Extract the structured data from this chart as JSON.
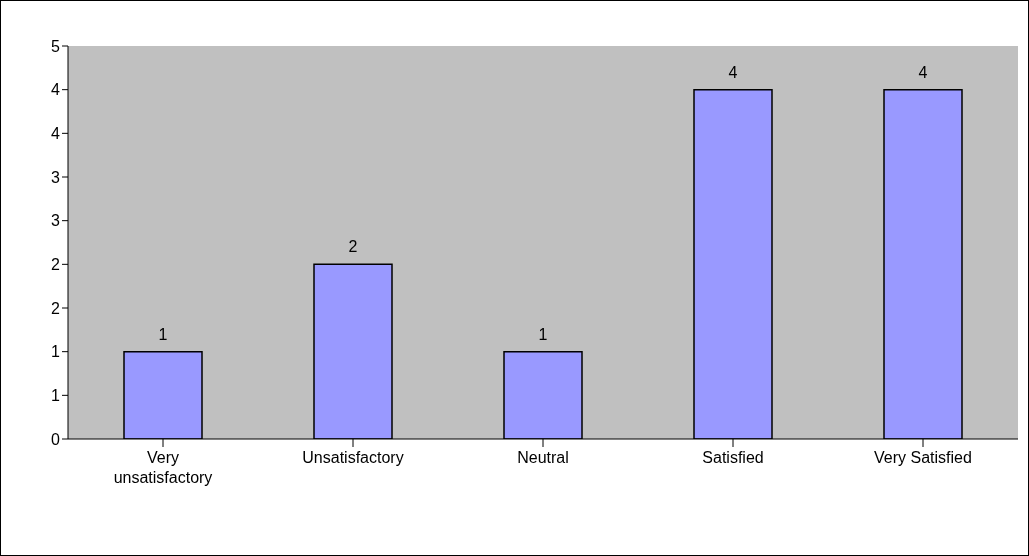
{
  "chart_data": {
    "type": "bar",
    "categories": [
      "Very unsatisfactory",
      "Unsatisfactory",
      "Neutral",
      "Satisfied",
      "Very Satisfied"
    ],
    "values": [
      1,
      2,
      1,
      4,
      4
    ],
    "color": "#9999ff",
    "ylim": [
      0,
      4.5
    ],
    "yticks": [
      0,
      {
        "value": 0.5,
        "label": "1"
      },
      1,
      {
        "value": 1.5,
        "label": "2"
      },
      2,
      {
        "value": 2.5,
        "label": "3"
      },
      3,
      {
        "value": 3.5,
        "label": "4"
      },
      4,
      {
        "value": 4.5,
        "label": "5"
      }
    ],
    "data_labels": true,
    "grid": false
  }
}
